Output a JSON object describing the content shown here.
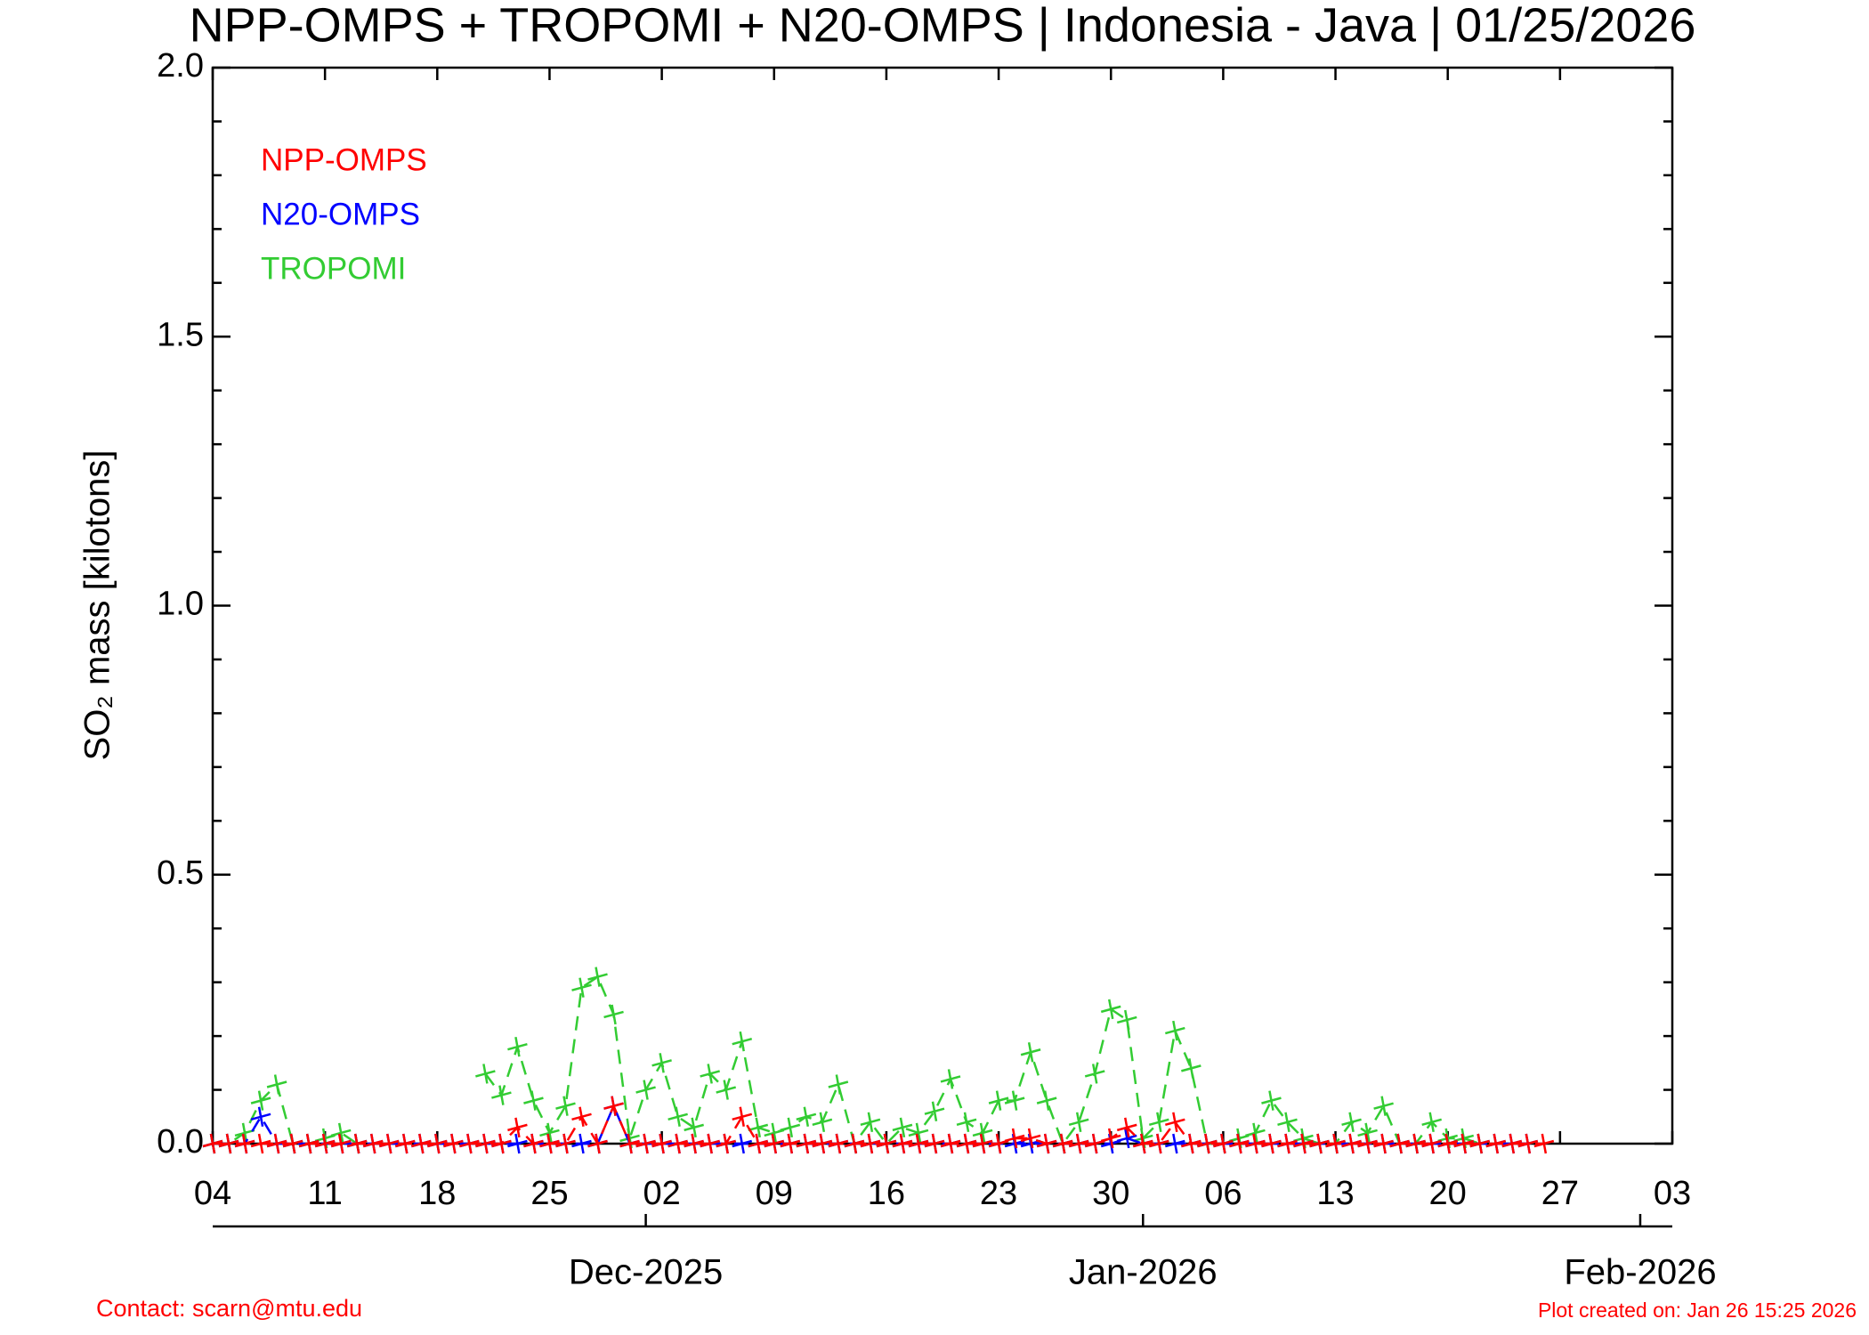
{
  "chart_data": {
    "type": "line",
    "title": "NPP-OMPS + TROPOMI + N20-OMPS | Indonesia - Java | 01/25/2026",
    "y_label": "SO₂ mass [kilotons]",
    "x": [
      "2025-11-04",
      "2025-11-05",
      "2025-11-06",
      "2025-11-07",
      "2025-11-08",
      "2025-11-09",
      "2025-11-10",
      "2025-11-11",
      "2025-11-12",
      "2025-11-13",
      "2025-11-14",
      "2025-11-15",
      "2025-11-16",
      "2025-11-17",
      "2025-11-18",
      "2025-11-19",
      "2025-11-20",
      "2025-11-21",
      "2025-11-22",
      "2025-11-23",
      "2025-11-24",
      "2025-11-25",
      "2025-11-26",
      "2025-11-27",
      "2025-11-28",
      "2025-11-29",
      "2025-11-30",
      "2025-12-01",
      "2025-12-02",
      "2025-12-03",
      "2025-12-04",
      "2025-12-05",
      "2025-12-06",
      "2025-12-07",
      "2025-12-08",
      "2025-12-09",
      "2025-12-10",
      "2025-12-11",
      "2025-12-12",
      "2025-12-13",
      "2025-12-14",
      "2025-12-15",
      "2025-12-16",
      "2025-12-17",
      "2025-12-18",
      "2025-12-19",
      "2025-12-20",
      "2025-12-21",
      "2025-12-22",
      "2025-12-23",
      "2025-12-24",
      "2025-12-25",
      "2025-12-26",
      "2025-12-27",
      "2025-12-28",
      "2025-12-29",
      "2025-12-30",
      "2025-12-31",
      "2026-01-01",
      "2026-01-02",
      "2026-01-03",
      "2026-01-04",
      "2026-01-05",
      "2026-01-06",
      "2026-01-07",
      "2026-01-08",
      "2026-01-09",
      "2026-01-10",
      "2026-01-11",
      "2026-01-12",
      "2026-01-13",
      "2026-01-14",
      "2026-01-15",
      "2026-01-16",
      "2026-01-17",
      "2026-01-18",
      "2026-01-19",
      "2026-01-20",
      "2026-01-21",
      "2026-01-22",
      "2026-01-23",
      "2026-01-24",
      "2026-01-25",
      "2026-01-26"
    ],
    "series": [
      {
        "name": "NPP-OMPS",
        "color": "#ff0000",
        "values": [
          0,
          0,
          0,
          0,
          0,
          0,
          0,
          0,
          0,
          0,
          0,
          0,
          0,
          0,
          0,
          0,
          0,
          0,
          0,
          0.03,
          0,
          0,
          0,
          0.05,
          0,
          0.07,
          0,
          0,
          0,
          0,
          0,
          0,
          0,
          0.05,
          0,
          0,
          0,
          0,
          0,
          0,
          0,
          0,
          0,
          0,
          0,
          0,
          0,
          0,
          0,
          0,
          0.01,
          0.01,
          0,
          0,
          0,
          0,
          0.01,
          0.03,
          0,
          0,
          0.04,
          0,
          0,
          0,
          0,
          0,
          0,
          0,
          0,
          0,
          0,
          0,
          0,
          0,
          0,
          0,
          0,
          0,
          0,
          0,
          0,
          0,
          0,
          0
        ]
      },
      {
        "name": "N20-OMPS",
        "color": "#0000ff",
        "values": [
          0,
          0,
          0,
          0.05,
          0,
          0,
          0,
          0,
          0,
          0,
          0,
          0,
          0,
          0,
          0,
          0,
          0,
          0,
          0,
          0,
          0,
          0,
          0,
          0,
          0,
          0.07,
          0,
          0,
          0,
          0,
          0,
          0,
          0,
          0,
          0,
          0,
          0,
          0,
          0,
          0,
          0,
          0,
          0,
          0,
          0,
          0,
          0,
          0,
          0,
          0,
          0,
          0,
          0,
          0,
          0,
          0,
          0,
          0.01,
          0,
          0,
          0,
          0,
          0,
          0,
          0,
          0,
          0,
          0,
          0,
          0,
          0,
          0,
          0,
          0,
          0,
          0,
          0,
          0,
          0,
          0,
          0,
          0,
          0,
          null
        ]
      },
      {
        "name": "TROPOMI",
        "color": "#33cc33",
        "values": [
          0,
          0,
          0.02,
          0.08,
          0.11,
          0,
          0,
          0.01,
          0.02,
          0,
          null,
          null,
          null,
          null,
          null,
          null,
          null,
          0.13,
          0.09,
          0.18,
          0.08,
          0.02,
          0.07,
          0.29,
          0.31,
          0.24,
          0.01,
          0.1,
          0.15,
          0.05,
          0.03,
          0.13,
          0.1,
          0.19,
          0.03,
          0.02,
          0.03,
          0.05,
          0.04,
          0.11,
          0,
          0.04,
          0,
          0.03,
          0.02,
          0.06,
          0.12,
          0.04,
          0.02,
          0.08,
          0.08,
          0.17,
          0.08,
          0,
          0.04,
          0.13,
          0.25,
          0.23,
          0.01,
          0.04,
          0.21,
          0.14,
          0,
          0,
          0.01,
          0.02,
          0.08,
          0.04,
          0.01,
          0,
          0,
          0.04,
          0.02,
          0.07,
          0,
          0,
          0.04,
          0.01,
          0.01,
          0,
          null,
          null,
          null,
          null
        ]
      }
    ],
    "xlim": [
      "2025-11-04",
      "2026-02-03"
    ],
    "xticks": [
      {
        "value": "2025-11-04",
        "label": "04"
      },
      {
        "value": "2025-11-11",
        "label": "11"
      },
      {
        "value": "2025-11-18",
        "label": "18"
      },
      {
        "value": "2025-11-25",
        "label": "25"
      },
      {
        "value": "2025-12-02",
        "label": "02"
      },
      {
        "value": "2025-12-09",
        "label": "09"
      },
      {
        "value": "2025-12-16",
        "label": "16"
      },
      {
        "value": "2025-12-23",
        "label": "23"
      },
      {
        "value": "2025-12-30",
        "label": "30"
      },
      {
        "value": "2026-01-06",
        "label": "06"
      },
      {
        "value": "2026-01-13",
        "label": "13"
      },
      {
        "value": "2026-01-20",
        "label": "20"
      },
      {
        "value": "2026-01-27",
        "label": "27"
      },
      {
        "value": "2026-02-03",
        "label": "03"
      }
    ],
    "month_ticks": [
      {
        "value": "2025-12-01",
        "label": "Dec-2025"
      },
      {
        "value": "2026-01-01",
        "label": "Jan-2026"
      },
      {
        "value": "2026-02-01",
        "label": "Feb-2026"
      }
    ],
    "ylim": [
      0,
      2.0
    ],
    "yticks": [
      {
        "value": 0,
        "label": "0.0"
      },
      0.5,
      {
        "value": 1,
        "label": "1.0"
      },
      1.5,
      {
        "value": 2,
        "label": "2.0"
      }
    ],
    "yminor_ticks": [
      0.1,
      0.2,
      0.3,
      0.4,
      0.6,
      0.7,
      0.8,
      0.9,
      1.1,
      1.2,
      1.3,
      1.4,
      1.6,
      1.7,
      1.8,
      1.9
    ],
    "contact": "Contact: scarn@mtu.edu",
    "created": "Plot created on: Jan 26 15:25 2026"
  }
}
